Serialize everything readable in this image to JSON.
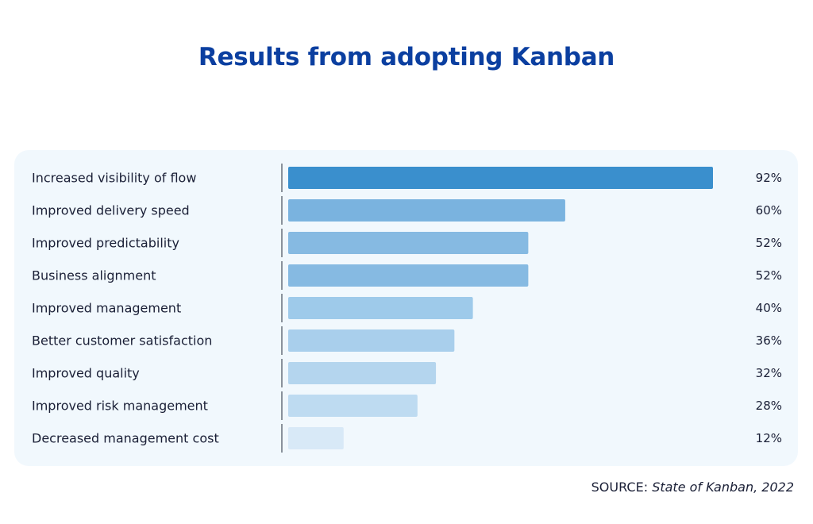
{
  "colors": {
    "title": "#0b3fa0",
    "text": "#1a1f36",
    "panel_background": "#f1f8fd",
    "axis": "#5f6672",
    "bar_shades": [
      "#3a8fcd",
      "#7ab3df",
      "#86bae2",
      "#86bae2",
      "#9ecaea",
      "#a9cfec",
      "#b4d5ee",
      "#bedbf1",
      "#d8e9f7"
    ]
  },
  "source": {
    "prefix": "SOURCE: ",
    "work": "State of Kanban, 2022"
  },
  "chart_data": {
    "type": "bar",
    "orientation": "horizontal",
    "title": "Results from adopting Kanban",
    "categories": [
      "Increased visibility of flow",
      "Improved delivery speed",
      "Improved predictability",
      "Business alignment",
      "Improved management",
      "Better customer satisfaction",
      "Improved quality",
      "Improved risk management",
      "Decreased management cost"
    ],
    "values": [
      92,
      60,
      52,
      52,
      40,
      36,
      32,
      28,
      12
    ],
    "value_labels": [
      "92%",
      "60%",
      "52%",
      "52%",
      "40%",
      "36%",
      "32%",
      "28%",
      "12%"
    ],
    "unit": "%",
    "xlim": [
      0,
      100
    ],
    "grid": false,
    "legend": "none"
  }
}
